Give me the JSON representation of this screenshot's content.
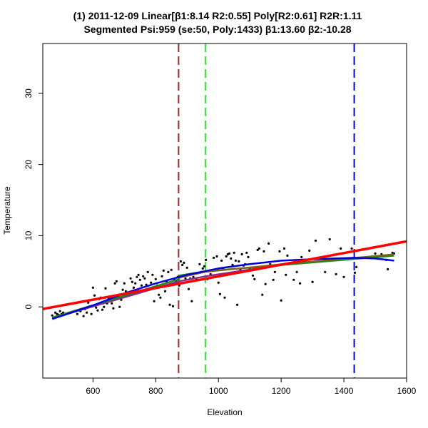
{
  "chart_data": {
    "type": "scatter",
    "title_line1": "(1) 2011-12-09 Linear[β1:8.14 R2:0.55] Poly[R2:0.61] R2R:1.11",
    "title_line2": "Segmented Psi:959 (se:50, Poly:1433) β1:13.60 β2:-10.28",
    "xlabel": "Elevation",
    "ylabel": "Temperature",
    "xlim": [
      440,
      1600
    ],
    "ylim": [
      -10,
      37
    ],
    "x_ticks": [
      600,
      800,
      1000,
      1200,
      1400,
      1600
    ],
    "y_ticks": [
      0,
      10,
      20,
      30
    ],
    "grid": false,
    "points": [
      [
        470,
        -1.2
      ],
      [
        475,
        -1.6
      ],
      [
        480,
        -0.8
      ],
      [
        485,
        -1.0
      ],
      [
        490,
        -1.1
      ],
      [
        495,
        -0.6
      ],
      [
        500,
        -1.0
      ],
      [
        505,
        -0.8
      ],
      [
        550,
        -1.0
      ],
      [
        560,
        -0.6
      ],
      [
        570,
        -1.3
      ],
      [
        575,
        -0.3
      ],
      [
        580,
        -0.8
      ],
      [
        585,
        0.6
      ],
      [
        595,
        -1.0
      ],
      [
        600,
        2.7
      ],
      [
        605,
        1.6
      ],
      [
        610,
        -0.1
      ],
      [
        615,
        -0.5
      ],
      [
        620,
        1.1
      ],
      [
        625,
        1.3
      ],
      [
        630,
        -0.4
      ],
      [
        635,
        0.0
      ],
      [
        640,
        2.6
      ],
      [
        645,
        0.5
      ],
      [
        650,
        1.2
      ],
      [
        655,
        1.0
      ],
      [
        660,
        0.5
      ],
      [
        665,
        -0.2
      ],
      [
        670,
        3.3
      ],
      [
        675,
        3.6
      ],
      [
        680,
        1.5
      ],
      [
        685,
        0.0
      ],
      [
        690,
        1.0
      ],
      [
        695,
        2.4
      ],
      [
        700,
        3.3
      ],
      [
        705,
        2.2
      ],
      [
        710,
        1.7
      ],
      [
        715,
        1.9
      ],
      [
        720,
        4.0
      ],
      [
        725,
        3.5
      ],
      [
        730,
        2.7
      ],
      [
        735,
        3.3
      ],
      [
        740,
        4.2
      ],
      [
        745,
        4.5
      ],
      [
        750,
        3.8
      ],
      [
        755,
        3.0
      ],
      [
        760,
        4.3
      ],
      [
        765,
        4.0
      ],
      [
        770,
        3.1
      ],
      [
        775,
        4.9
      ],
      [
        780,
        2.6
      ],
      [
        785,
        3.4
      ],
      [
        790,
        4.5
      ],
      [
        795,
        0.8
      ],
      [
        800,
        3.9
      ],
      [
        805,
        3.0
      ],
      [
        810,
        1.7
      ],
      [
        815,
        1.3
      ],
      [
        820,
        4.3
      ],
      [
        825,
        5.1
      ],
      [
        830,
        2.2
      ],
      [
        835,
        3.6
      ],
      [
        840,
        4.9
      ],
      [
        845,
        0.3
      ],
      [
        850,
        5.2
      ],
      [
        855,
        0.1
      ],
      [
        860,
        3.8
      ],
      [
        865,
        3.6
      ],
      [
        870,
        4.2
      ],
      [
        875,
        3.0
      ],
      [
        880,
        6.4
      ],
      [
        885,
        5.9
      ],
      [
        890,
        6.2
      ],
      [
        895,
        4.0
      ],
      [
        900,
        5.5
      ],
      [
        905,
        2.5
      ],
      [
        910,
        4.0
      ],
      [
        915,
        0.8
      ],
      [
        920,
        4.2
      ],
      [
        930,
        3.9
      ],
      [
        940,
        6.0
      ],
      [
        945,
        4.9
      ],
      [
        950,
        5.4
      ],
      [
        955,
        5.7
      ],
      [
        960,
        6.6
      ],
      [
        965,
        3.9
      ],
      [
        975,
        4.6
      ],
      [
        985,
        6.9
      ],
      [
        995,
        7.1
      ],
      [
        1000,
        3.4
      ],
      [
        1005,
        1.8
      ],
      [
        1010,
        6.5
      ],
      [
        1015,
        5.4
      ],
      [
        1020,
        1.3
      ],
      [
        1025,
        7.1
      ],
      [
        1030,
        7.4
      ],
      [
        1035,
        7.5
      ],
      [
        1040,
        6.8
      ],
      [
        1045,
        5.9
      ],
      [
        1050,
        7.6
      ],
      [
        1055,
        6.5
      ],
      [
        1060,
        0.3
      ],
      [
        1065,
        6.4
      ],
      [
        1070,
        5.2
      ],
      [
        1075,
        7.4
      ],
      [
        1080,
        5.8
      ],
      [
        1085,
        6.0
      ],
      [
        1090,
        7.6
      ],
      [
        1095,
        7.0
      ],
      [
        1100,
        5.4
      ],
      [
        1110,
        4.4
      ],
      [
        1115,
        3.9
      ],
      [
        1125,
        8.0
      ],
      [
        1130,
        8.2
      ],
      [
        1140,
        1.7
      ],
      [
        1145,
        7.8
      ],
      [
        1150,
        3.2
      ],
      [
        1160,
        8.9
      ],
      [
        1165,
        6.0
      ],
      [
        1175,
        3.8
      ],
      [
        1180,
        4.9
      ],
      [
        1195,
        7.8
      ],
      [
        1200,
        0.9
      ],
      [
        1210,
        8.2
      ],
      [
        1215,
        4.5
      ],
      [
        1220,
        7.2
      ],
      [
        1240,
        3.8
      ],
      [
        1250,
        4.9
      ],
      [
        1260,
        3.3
      ],
      [
        1265,
        7.0
      ],
      [
        1290,
        7.9
      ],
      [
        1300,
        3.5
      ],
      [
        1310,
        9.3
      ],
      [
        1340,
        4.9
      ],
      [
        1355,
        9.5
      ],
      [
        1375,
        4.6
      ],
      [
        1390,
        8.2
      ],
      [
        1400,
        4.2
      ],
      [
        1425,
        8.2
      ],
      [
        1435,
        4.8
      ],
      [
        1440,
        5.6
      ],
      [
        1500,
        7.5
      ],
      [
        1520,
        7.4
      ],
      [
        1535,
        6.6
      ],
      [
        1540,
        5.3
      ],
      [
        1555,
        7.6
      ],
      [
        1560,
        7.5
      ]
    ],
    "fit_linear": {
      "color": "#ff0000",
      "points": [
        [
          440,
          -0.3
        ],
        [
          1600,
          9.2
        ]
      ]
    },
    "fit_segmented": {
      "color": "#1a8a1a",
      "points": [
        [
          470,
          -1.5
        ],
        [
          875,
          3.9
        ],
        [
          875,
          4.4
        ],
        [
          959,
          5.0
        ],
        [
          1560,
          7.2
        ]
      ]
    },
    "fit_poly": {
      "color": "#0000dd",
      "points": [
        [
          470,
          -1.7
        ],
        [
          600,
          0.2
        ],
        [
          700,
          1.9
        ],
        [
          800,
          3.3
        ],
        [
          900,
          4.5
        ],
        [
          1000,
          5.4
        ],
        [
          1100,
          6.0
        ],
        [
          1200,
          6.5
        ],
        [
          1300,
          6.7
        ],
        [
          1433,
          6.9
        ],
        [
          1500,
          6.8
        ],
        [
          1560,
          6.5
        ]
      ]
    },
    "fit_segmented_alt": {
      "color": "#8a2a8a",
      "points": [
        [
          470,
          -1.6
        ],
        [
          875,
          3.6
        ],
        [
          959,
          4.3
        ],
        [
          1200,
          5.9
        ],
        [
          1433,
          6.8
        ],
        [
          1560,
          7.3
        ]
      ]
    },
    "fit_segmented_brown": {
      "color": "#8b5a14",
      "points": [
        [
          875,
          4.1
        ],
        [
          959,
          4.9
        ],
        [
          1200,
          6.0
        ],
        [
          1433,
          6.9
        ],
        [
          1560,
          7.4
        ]
      ]
    },
    "vlines": [
      {
        "name": "vline-brown",
        "x": 873,
        "color": "#b22222"
      },
      {
        "name": "vline-green",
        "x": 959,
        "color": "#22ee22"
      },
      {
        "name": "vline-blue",
        "x": 1433,
        "color": "#0000ee"
      }
    ]
  }
}
